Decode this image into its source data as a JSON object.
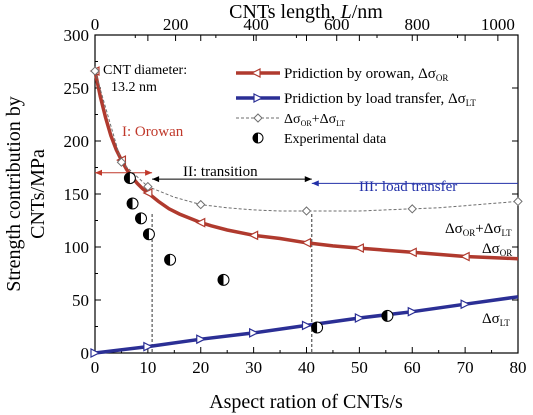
{
  "chart_data": {
    "type": "line",
    "top_axis": {
      "label_text": "CNTs length, ",
      "label_symbol": "L",
      "label_unit": "/nm",
      "range": [
        0,
        1050
      ],
      "ticks": [
        "0",
        "200",
        "400",
        "600",
        "800",
        "1000"
      ]
    },
    "xlabel": "Aspect ration of CNTs/s",
    "ylabel_line1": "Strength contribution by",
    "ylabel_line2": "CNTs/MPa",
    "xlim": [
      0,
      80
    ],
    "ylim": [
      0,
      300
    ],
    "xticks": [
      "0",
      "10",
      "20",
      "30",
      "40",
      "50",
      "60",
      "70",
      "80"
    ],
    "yticks": [
      "0",
      "50",
      "100",
      "150",
      "200",
      "250",
      "300"
    ],
    "annotation_diameter": "CNT diameter:",
    "annotation_diameter_value": "13.2 nm",
    "regions": {
      "orowan": "I: Orowan",
      "transition": "II: transition",
      "load_transfer": "III: load transfer",
      "boundaries": [
        10.8,
        41
      ]
    },
    "legend": [
      {
        "text": "Pridiction by orowan, Δσ",
        "sub": "OR"
      },
      {
        "text": "Pridiction by load transfer, Δσ",
        "sub": "LT"
      },
      {
        "text": "Δσ",
        "sub": "OR",
        "text2": "+Δσ",
        "sub2": "LT"
      },
      {
        "text": "Experimental data",
        "sub": ""
      }
    ],
    "curve_labels": {
      "sum": {
        "a": "Δσ",
        "sa": "OR",
        "b": "+Δσ",
        "sb": "LT"
      },
      "orowan": {
        "a": "Δσ",
        "sa": "OR"
      },
      "load": {
        "a": "Δσ",
        "sa": "LT"
      }
    },
    "series": [
      {
        "key": "orowan",
        "x": [
          0,
          1,
          2,
          3,
          4,
          5,
          6,
          7,
          8,
          9,
          10,
          12,
          14,
          16,
          18,
          20,
          22,
          25,
          30,
          35,
          40,
          45,
          50,
          55,
          60,
          65,
          70,
          75,
          80
        ],
        "y": [
          266,
          242,
          222,
          205,
          192,
          182,
          173,
          166,
          160,
          155,
          151,
          143,
          136,
          131,
          127,
          123,
          120,
          116,
          111,
          108,
          104,
          101,
          99,
          97,
          95,
          93,
          91,
          90,
          89
        ],
        "markers_x": [
          0,
          5,
          10,
          20,
          30,
          40,
          50,
          60,
          70
        ]
      },
      {
        "key": "load",
        "x": [
          0,
          10,
          20,
          30,
          40,
          50,
          60,
          70,
          80
        ],
        "y": [
          0,
          6,
          13,
          19,
          26,
          33,
          39,
          46,
          53
        ],
        "markers_x": [
          0,
          10,
          20,
          30,
          40,
          50,
          60,
          70
        ]
      },
      {
        "key": "sum",
        "x": [
          0,
          5,
          10,
          15,
          20,
          25,
          30,
          35,
          40,
          45,
          50,
          55,
          60,
          65,
          70,
          75,
          80
        ],
        "y": [
          266,
          180,
          157,
          147,
          140,
          137,
          135,
          134,
          134,
          134,
          134,
          135,
          136,
          137,
          139,
          141,
          143
        ],
        "markers_x": [
          0,
          5,
          10,
          20,
          40,
          60,
          80
        ]
      }
    ],
    "experimental": {
      "x": [
        6.6,
        7.1,
        8.7,
        10.2,
        14.2,
        24.3,
        42.0,
        55.3
      ],
      "y": [
        165,
        141,
        127,
        112,
        88,
        69,
        24,
        35
      ]
    },
    "colors": {
      "orowan": "#b03a2e",
      "load": "#2b2f95",
      "sum": "#6e6e6e",
      "orowan_annotation": "#c0392b",
      "load_annotation": "#2230a8"
    }
  }
}
